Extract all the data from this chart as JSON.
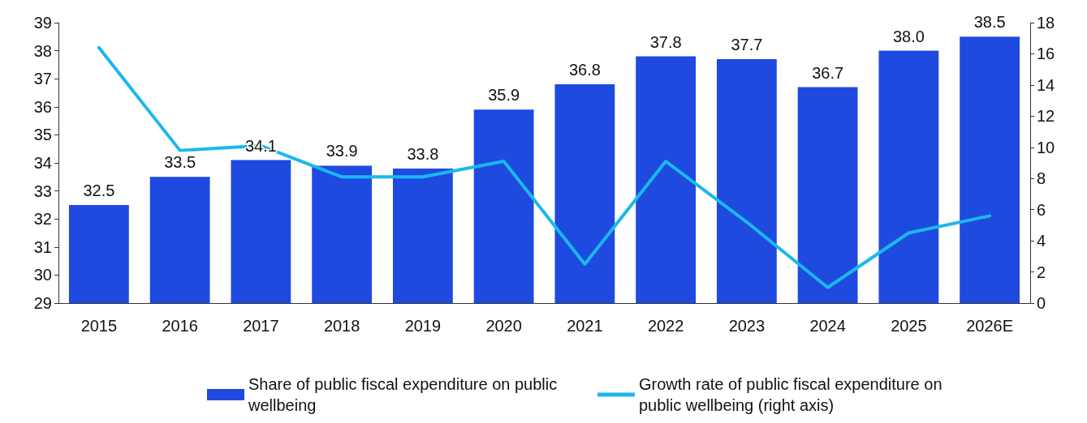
{
  "chart_data": {
    "type": "bar",
    "categories": [
      "2015",
      "2016",
      "2017",
      "2018",
      "2019",
      "2020",
      "2021",
      "2022",
      "2023",
      "2024",
      "2025",
      "2026E"
    ],
    "series": [
      {
        "name": "Share of public fiscal expenditure on public wellbeing",
        "color": "#1f4ae0",
        "values": [
          32.5,
          33.5,
          34.1,
          33.9,
          33.8,
          35.9,
          36.8,
          37.8,
          37.7,
          36.7,
          38.0,
          38.5
        ],
        "value_labels": [
          "32.5",
          "33.5",
          "34.1",
          "33.9",
          "33.8",
          "35.9",
          "36.8",
          "37.8",
          "37.7",
          "36.7",
          "38.0",
          "38.5"
        ]
      },
      {
        "name": "Growth rate of public fiscal expenditure on public wellbeing (right axis)",
        "type": "line",
        "axis": "y2",
        "color": "#1ab8ee",
        "values": [
          16.4,
          9.8,
          10.1,
          8.1,
          8.1,
          9.1,
          2.5,
          9.1,
          5.2,
          1.0,
          4.5,
          5.6
        ]
      }
    ],
    "ylim": [
      29,
      39
    ],
    "yticks": [
      29,
      30,
      31,
      32,
      33,
      34,
      35,
      36,
      37,
      38,
      39
    ],
    "y2lim": [
      0,
      18
    ],
    "y2ticks": [
      0,
      2,
      4,
      6,
      8,
      10,
      12,
      14,
      16,
      18
    ],
    "grid": false,
    "legend": "bottom",
    "marker": "none",
    "line_style": "solid"
  }
}
